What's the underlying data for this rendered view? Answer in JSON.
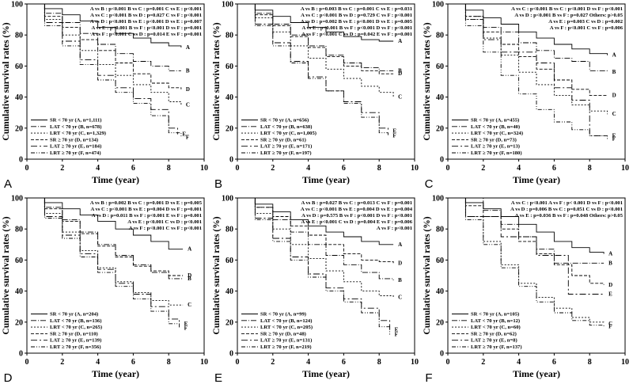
{
  "figure": {
    "x_axis_label": "Time (year)",
    "y_axis_label": "Cumulative survival rates (%)",
    "x_ticks": [
      "0",
      "2",
      "4",
      "6",
      "8",
      "10"
    ],
    "y_ticks": [
      "0",
      "20",
      "40",
      "60",
      "80",
      "100"
    ]
  },
  "chart_data": [
    {
      "panel": "A",
      "type": "line",
      "xlim": [
        0,
        10
      ],
      "ylim": [
        0,
        100
      ],
      "xlabel": "Time (year)",
      "ylabel": "Cumulative survival rates (%)",
      "stats": [
        "A vs B : p<0.001  B vs C : p=0.001  C vs E : p<0.001",
        "A vs C : p<0.001  B vs D : p=0.027  C vs F : p<0.001",
        "A vs D : p<0.001  B vs E : p<0.001  D vs E : p=0.007",
        "A vs E : p<0.001  B vs F : p<0.001  D vs F : p=0.001",
        "A vs F : p<0.001  C vs D : p=0.014  E vs F : p=0.001"
      ],
      "legend": [
        "SR < 70 yr (A, n=1,111)",
        "LAT < 70 yr (B, n=678)",
        "LRT < 70 yr (C, n=1,329)",
        "SR ≥ 70 yr (D, n=134)",
        "LAT ≥ 70 yr (E, n=184)",
        "LRT ≥ 70 yr (F, n=474)"
      ],
      "series": [
        {
          "name": "A",
          "x": [
            0,
            1,
            2,
            3,
            4,
            5,
            6,
            7,
            8,
            8.7
          ],
          "y": [
            100,
            97,
            93,
            89,
            85,
            81,
            78,
            75,
            73,
            72
          ]
        },
        {
          "name": "B",
          "x": [
            0,
            1,
            2,
            3,
            4,
            5,
            6,
            7,
            8,
            8.7
          ],
          "y": [
            100,
            94,
            88,
            81,
            74,
            68,
            63,
            60,
            57,
            57
          ]
        },
        {
          "name": "C",
          "x": [
            0,
            1,
            2,
            3,
            4,
            5,
            6,
            7,
            8,
            8.7
          ],
          "y": [
            100,
            90,
            80,
            70,
            61,
            54,
            48,
            43,
            37,
            35
          ]
        },
        {
          "name": "D",
          "x": [
            0,
            1,
            2,
            3,
            4,
            5,
            6,
            7,
            8,
            8.7
          ],
          "y": [
            100,
            92,
            85,
            77,
            70,
            62,
            55,
            49,
            46,
            45
          ]
        },
        {
          "name": "E",
          "x": [
            0,
            1,
            2,
            3,
            4,
            5,
            6,
            7,
            8,
            8.5
          ],
          "y": [
            100,
            88,
            76,
            64,
            54,
            46,
            39,
            32,
            20,
            16
          ]
        },
        {
          "name": "F",
          "x": [
            0,
            1,
            2,
            3,
            4,
            5,
            6,
            7,
            8,
            8.7
          ],
          "y": [
            100,
            86,
            73,
            61,
            51,
            43,
            36,
            28,
            17,
            14
          ]
        }
      ]
    },
    {
      "panel": "B",
      "type": "line",
      "xlim": [
        0,
        10
      ],
      "ylim": [
        0,
        100
      ],
      "xlabel": "Time (year)",
      "ylabel": "Cumulative survival rates (%)",
      "stats": [
        "A vs B : p=0.003  B vs C : p=0.001  C vs E : p=0.031",
        "A vs C : p<0.001  B vs D : p=0.729  C vs F : p<0.001",
        "A vs D : p=0.002  B vs E : p<0.001  D vs E : p=0.005",
        "A vs E : p<0.001  B vs F : p<0.001  D vs F : p<0.001",
        "A vs F : p<0.001  C vs D : p=0.042  E vs F : p=0.001"
      ],
      "legend": [
        "SR < 70 yr (A, n=656)",
        "LAT < 70 yr (B, n=638)",
        "LRT < 70 yr (C, n=1,005)",
        "SR ≥ 70 yr (D, n=61)",
        "LAT ≥ 70 yr (E, n=171)",
        "LRT ≥ 70 yr (F, n=197)"
      ],
      "series": [
        {
          "name": "A",
          "x": [
            0,
            1,
            2,
            3,
            4,
            5,
            6,
            7,
            8,
            8.8
          ],
          "y": [
            100,
            96,
            92,
            88,
            85,
            82,
            79,
            77,
            76,
            76
          ]
        },
        {
          "name": "B",
          "x": [
            0,
            1,
            2,
            3,
            4,
            5,
            6,
            7,
            8,
            8.8
          ],
          "y": [
            100,
            94,
            87,
            80,
            73,
            67,
            62,
            59,
            57,
            57
          ]
        },
        {
          "name": "C",
          "x": [
            0,
            1,
            2,
            3,
            4,
            5,
            6,
            7,
            8,
            8.8
          ],
          "y": [
            100,
            91,
            82,
            73,
            65,
            58,
            52,
            47,
            43,
            40
          ]
        },
        {
          "name": "D",
          "x": [
            0,
            1,
            2,
            3,
            4,
            5,
            6,
            7,
            8,
            8.8
          ],
          "y": [
            100,
            93,
            86,
            79,
            72,
            66,
            60,
            57,
            55,
            55
          ]
        },
        {
          "name": "E",
          "x": [
            0,
            1,
            2,
            3,
            4,
            5,
            6,
            7,
            8,
            8.5
          ],
          "y": [
            100,
            87,
            75,
            63,
            53,
            44,
            37,
            30,
            20,
            18
          ]
        },
        {
          "name": "F",
          "x": [
            0,
            1,
            2,
            3,
            4,
            5,
            6,
            7,
            8,
            8.5
          ],
          "y": [
            100,
            86,
            73,
            62,
            52,
            44,
            36,
            27,
            17,
            15
          ]
        }
      ]
    },
    {
      "panel": "C",
      "type": "line",
      "xlim": [
        0,
        10
      ],
      "ylim": [
        0,
        100
      ],
      "xlabel": "Time (year)",
      "ylabel": "Cumulative survival rates (%)",
      "stats": [
        "A vs C : p<0.001  B vs C : p<0.001  D vs F : p<0.001",
        "A vs D : p<0.001  B vs F : p=0.027  Others: p>0.05",
        "A vs E : p=0.003  C vs D : p=0.002",
        "A vs F : p<0.001  C vs F : p=0.006"
      ],
      "legend": [
        "SR < 70 yr (A, n=455)",
        "LAT < 70 yr (B, n=40)",
        "LRT < 70 yr (C, n=324)",
        "SR ≥ 70 yr (D, n=73)",
        "LAT ≥ 70 yr (E, n=13)",
        "LRT ≥ 70 yr (F, n=180)"
      ],
      "series": [
        {
          "name": "A",
          "x": [
            0,
            1,
            2,
            3,
            4,
            5,
            6,
            7,
            8,
            9
          ],
          "y": [
            100,
            96,
            91,
            87,
            82,
            78,
            74,
            71,
            68,
            67
          ]
        },
        {
          "name": "B",
          "x": [
            0,
            1,
            2,
            3,
            4,
            5,
            6,
            7,
            8,
            9
          ],
          "y": [
            100,
            90,
            85,
            82,
            75,
            70,
            65,
            63,
            57,
            56
          ]
        },
        {
          "name": "C",
          "x": [
            0,
            1,
            2,
            3,
            4,
            5,
            6,
            7,
            8,
            9
          ],
          "y": [
            100,
            90,
            78,
            67,
            56,
            48,
            41,
            35,
            31,
            29
          ]
        },
        {
          "name": "D",
          "x": [
            0,
            1,
            2,
            3,
            4,
            5,
            6,
            7,
            8,
            9
          ],
          "y": [
            100,
            92,
            82,
            74,
            66,
            58,
            51,
            45,
            41,
            41
          ]
        },
        {
          "name": "E",
          "x": [
            0,
            1,
            2,
            3,
            4,
            5,
            6,
            7,
            8,
            9
          ],
          "y": [
            100,
            92,
            77,
            69,
            69,
            62,
            46,
            38,
            15,
            15
          ]
        },
        {
          "name": "F",
          "x": [
            0,
            1,
            2,
            3,
            4,
            5,
            6,
            7,
            8,
            9
          ],
          "y": [
            100,
            86,
            69,
            54,
            42,
            32,
            24,
            19,
            15,
            13
          ]
        }
      ]
    },
    {
      "panel": "D",
      "type": "line",
      "xlim": [
        0,
        10
      ],
      "ylim": [
        0,
        100
      ],
      "xlabel": "Time (year)",
      "ylabel": "Cumulative survival rates (%)",
      "stats": [
        "A vs B : p=0.002  B vs C : p=0.001  D vs E : p=0.005",
        "A vs C : p<0.001  B vs E : p=0.004  D vs F : p=0.001",
        "A vs D : p=0.011  B vs F : p<0.001  E vs F : p=0.001",
        "A vs E : p<0.001  C vs D : p<0.001",
        "A vs F : p<0.001  C vs F : p<0.001"
      ],
      "legend": [
        "SR < 70 yr (A, n=204)",
        "LAT < 70 yr (B, n=136)",
        "LRT < 70 yr (C, n=265)",
        "SR ≥ 70 yr (D, n=110)",
        "LAT ≥ 70 yr (E, n=139)",
        "LRT ≥ 70 yr (F, n=356)"
      ],
      "series": [
        {
          "name": "A",
          "x": [
            0,
            1,
            2,
            3,
            4,
            5,
            6,
            7,
            8,
            8.8
          ],
          "y": [
            100,
            97,
            93,
            89,
            85,
            80,
            76,
            72,
            67,
            67
          ]
        },
        {
          "name": "B",
          "x": [
            0,
            1,
            2,
            3,
            4,
            5,
            6,
            7,
            8,
            8.8
          ],
          "y": [
            100,
            94,
            86,
            78,
            70,
            63,
            57,
            52,
            48,
            48
          ]
        },
        {
          "name": "C",
          "x": [
            0,
            1,
            2,
            3,
            4,
            5,
            6,
            7,
            8,
            8.8
          ],
          "y": [
            100,
            90,
            78,
            66,
            55,
            46,
            39,
            34,
            31,
            31
          ]
        },
        {
          "name": "D",
          "x": [
            0,
            1,
            2,
            3,
            4,
            5,
            6,
            7,
            8,
            8.8
          ],
          "y": [
            100,
            93,
            85,
            77,
            69,
            62,
            56,
            53,
            50,
            50
          ]
        },
        {
          "name": "E",
          "x": [
            0,
            1,
            2,
            3,
            4,
            5,
            6,
            7,
            8,
            8.6
          ],
          "y": [
            100,
            88,
            76,
            64,
            54,
            45,
            38,
            30,
            22,
            19
          ]
        },
        {
          "name": "F",
          "x": [
            0,
            1,
            2,
            3,
            4,
            5,
            6,
            7,
            8,
            8.6
          ],
          "y": [
            100,
            87,
            74,
            62,
            52,
            43,
            35,
            27,
            19,
            16
          ]
        }
      ]
    },
    {
      "panel": "E",
      "type": "line",
      "xlim": [
        0,
        10
      ],
      "ylim": [
        0,
        100
      ],
      "xlabel": "Time (year)",
      "ylabel": "Cumulative survival rates (%)",
      "stats": [
        "A vs B : p=0.027  B vs C : p=0.013  C vs F : p=0.001",
        "A vs C : p<0.001  B vs E : p=0.004  D vs E : p=0.004",
        "A vs D : p=0.575  B vs F : p<0.001  D vs F : p<0.001",
        "A vs E : p<0.001  C vs D : p=0.004  E vs F : p=0.006",
        "A vs F : p<0.001"
      ],
      "legend": [
        "SR < 70 yr (A, n=99)",
        "LAT < 70 yr (B, n=124)",
        "LRT < 70 yr (C, n=205)",
        "SR ≥ 70 yr (D, n=48)",
        "LAT ≥ 70 yr (E, n=131)",
        "LRT ≥ 70 yr (F, n=219)"
      ],
      "series": [
        {
          "name": "A",
          "x": [
            0,
            1,
            2,
            3,
            4,
            5,
            6,
            7,
            8,
            8.8
          ],
          "y": [
            100,
            96,
            91,
            86,
            82,
            78,
            75,
            72,
            70,
            70
          ]
        },
        {
          "name": "B",
          "x": [
            0,
            1,
            2,
            3,
            4,
            5,
            6,
            7,
            8,
            8.8
          ],
          "y": [
            100,
            94,
            86,
            78,
            70,
            63,
            57,
            52,
            48,
            47
          ]
        },
        {
          "name": "C",
          "x": [
            0,
            1,
            2,
            3,
            4,
            5,
            6,
            7,
            8,
            8.8
          ],
          "y": [
            100,
            90,
            80,
            70,
            61,
            53,
            46,
            40,
            37,
            36
          ]
        },
        {
          "name": "D",
          "x": [
            0,
            1,
            2,
            3,
            4,
            5,
            6,
            7,
            8,
            8.8
          ],
          "y": [
            100,
            94,
            88,
            82,
            76,
            70,
            64,
            60,
            59,
            58
          ]
        },
        {
          "name": "E",
          "x": [
            0,
            1,
            2,
            3,
            4,
            5,
            6,
            7,
            8,
            8.6
          ],
          "y": [
            100,
            87,
            74,
            62,
            51,
            42,
            35,
            29,
            21,
            15
          ]
        },
        {
          "name": "F",
          "x": [
            0,
            1,
            2,
            3,
            4,
            5,
            6,
            7,
            8,
            8.6
          ],
          "y": [
            100,
            86,
            72,
            60,
            49,
            40,
            33,
            26,
            17,
            12
          ]
        }
      ]
    },
    {
      "panel": "F",
      "type": "line",
      "xlim": [
        0,
        10
      ],
      "ylim": [
        0,
        100
      ],
      "xlabel": "Time (year)",
      "ylabel": "Cumulative survival rates (%)",
      "stats": [
        "A vs C : p<0.001  A vs F : p< 0.001  D vs F : p<0.001",
        "A vs D : p=0.006  B vs C : p=0.051  C vs D : p<0.001",
        "A vs E : p=0.036  B vs F : p=0.048  Others: p>0.05"
      ],
      "legend": [
        "SR < 70 yr (A, n=105)",
        "LAT < 70 yr (B, n=12)",
        "LRT < 70 yr (C, n=60)",
        "SR ≥ 70 yr (D, n=62)",
        "LAT ≥ 70 yr (E, n=8)",
        "LRT ≥ 70 yr (F, n=137)"
      ],
      "series": [
        {
          "name": "A",
          "x": [
            0,
            1,
            2,
            3,
            4,
            5,
            6,
            7,
            8,
            8.8
          ],
          "y": [
            100,
            97,
            93,
            88,
            83,
            78,
            72,
            68,
            65,
            64
          ]
        },
        {
          "name": "B",
          "x": [
            0,
            1,
            2,
            3,
            4,
            5,
            6,
            7,
            8,
            8.8
          ],
          "y": [
            100,
            100,
            92,
            83,
            75,
            67,
            58,
            58,
            58,
            58
          ]
        },
        {
          "name": "C",
          "x": [
            0,
            1,
            2,
            3,
            4,
            5,
            6,
            7,
            8,
            8.8
          ],
          "y": [
            100,
            88,
            72,
            57,
            45,
            36,
            29,
            23,
            20,
            19
          ]
        },
        {
          "name": "D",
          "x": [
            0,
            1,
            2,
            3,
            4,
            5,
            6,
            7,
            8,
            8.8
          ],
          "y": [
            100,
            95,
            88,
            80,
            72,
            64,
            57,
            50,
            45,
            44
          ]
        },
        {
          "name": "E",
          "x": [
            0,
            1,
            2,
            3,
            4,
            5,
            6,
            6.8,
            7,
            8.8
          ],
          "y": [
            100,
            88,
            88,
            75,
            75,
            63,
            63,
            38,
            38,
            38
          ]
        },
        {
          "name": "F",
          "x": [
            0,
            1,
            2,
            3,
            4,
            5,
            6,
            7,
            8,
            8.8
          ],
          "y": [
            100,
            86,
            70,
            55,
            43,
            33,
            26,
            21,
            18,
            17
          ]
        }
      ]
    }
  ]
}
